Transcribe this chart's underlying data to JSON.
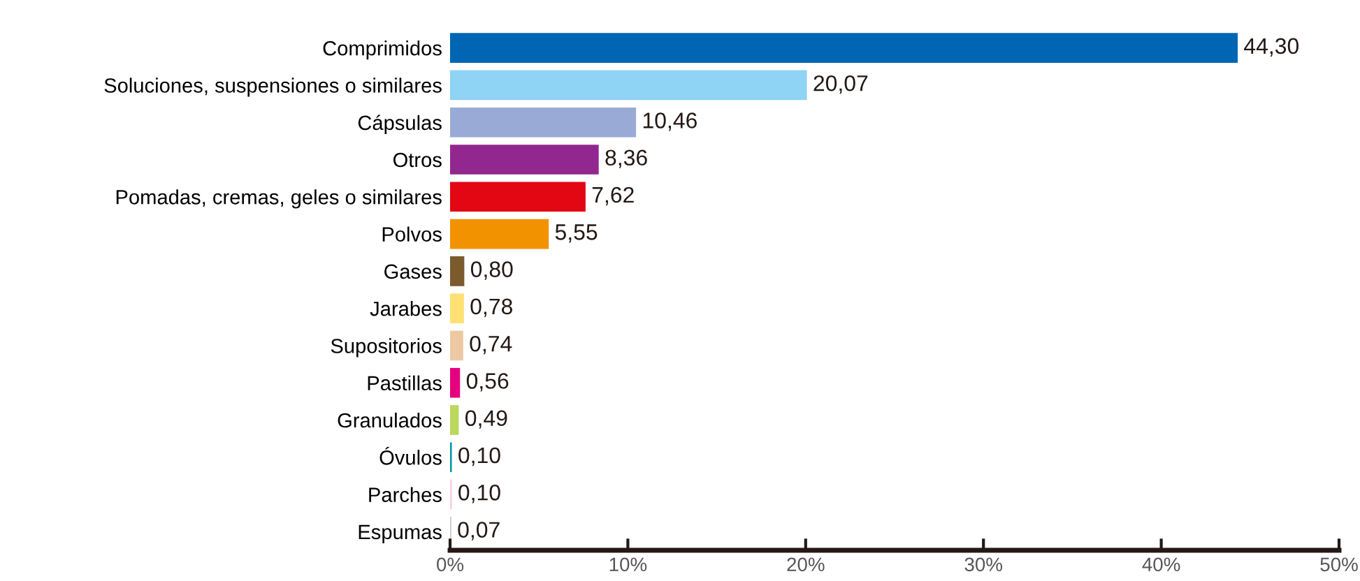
{
  "chart_data": {
    "type": "bar",
    "orientation": "horizontal",
    "categories": [
      "Comprimidos",
      "Soluciones, suspensiones o similares",
      "Cápsulas",
      "Otros",
      "Pomadas, cremas, geles o similares",
      "Polvos",
      "Gases",
      "Jarabes",
      "Supositorios",
      "Pastillas",
      "Granulados",
      "Óvulos",
      "Parches",
      "Espumas"
    ],
    "values": [
      44.3,
      20.07,
      10.46,
      8.36,
      7.62,
      5.55,
      0.8,
      0.78,
      0.74,
      0.56,
      0.49,
      0.1,
      0.1,
      0.07
    ],
    "value_labels": [
      "44,30",
      "20,07",
      "10,46",
      "8,36",
      "7,62",
      "5,55",
      "0,80",
      "0,78",
      "0,74",
      "0,56",
      "0,49",
      "0,10",
      "0,10",
      "0,07"
    ],
    "colors": [
      "#0066b3",
      "#8fd3f5",
      "#9aaad6",
      "#92278f",
      "#e30613",
      "#f39200",
      "#7b5a2e",
      "#ffe074",
      "#edc9a3",
      "#e5007d",
      "#bcd85f",
      "#0097a7",
      "#f9cfe0",
      "#c8c8c8"
    ],
    "xlim": [
      0,
      50
    ],
    "xticks": [
      {
        "value": 0,
        "label": "0%"
      },
      {
        "value": 10,
        "label": "10%"
      },
      {
        "value": 20,
        "label": "20%"
      },
      {
        "value": 30,
        "label": "30%"
      },
      {
        "value": 40,
        "label": "40%"
      },
      {
        "value": 50,
        "label": "50%"
      }
    ],
    "grid": false,
    "legend": false
  }
}
